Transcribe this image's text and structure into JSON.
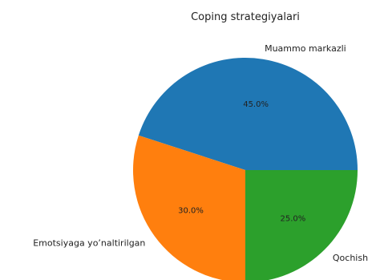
{
  "chart_data": {
    "type": "pie",
    "title": "Coping strategiyalari",
    "labels": [
      "Muammo markazli",
      "Emotsiyaga yo’naltirilgan",
      "Qochish"
    ],
    "values": [
      45.0,
      30.0,
      25.0
    ],
    "percent_labels": [
      "45.0%",
      "30.0%",
      "25.0%"
    ],
    "colors": [
      "#1f77b4",
      "#ff7f0e",
      "#2ca02c"
    ],
    "start_angle_deg": 0,
    "direction": "counterclockwise",
    "legend": "none"
  }
}
